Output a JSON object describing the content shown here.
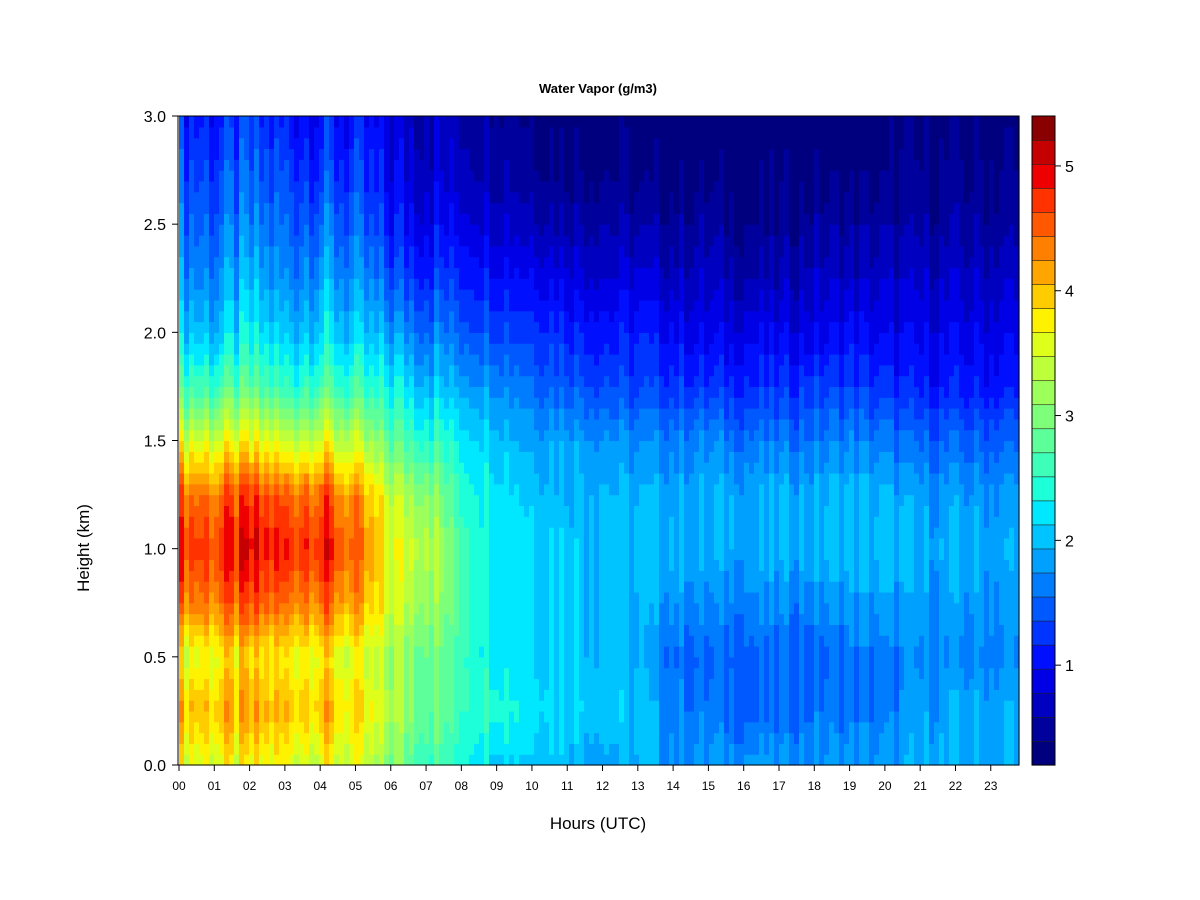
{
  "chart_data": {
    "type": "heatmap",
    "title": "Water Vapor (g/m3)",
    "xlabel": "Hours (UTC)",
    "ylabel": "Height (km)",
    "x_tick_labels": [
      "00",
      "01",
      "02",
      "03",
      "04",
      "05",
      "06",
      "07",
      "08",
      "09",
      "10",
      "11",
      "12",
      "13",
      "14",
      "15",
      "16",
      "17",
      "18",
      "19",
      "20",
      "21",
      "22",
      "23"
    ],
    "y_tick_labels": [
      "0.0",
      "0.5",
      "1.0",
      "1.5",
      "2.0",
      "2.5",
      "3.0"
    ],
    "xlim": [
      0,
      23.8
    ],
    "ylim": [
      0,
      3.0
    ],
    "colorbar": {
      "range": [
        0.2,
        5.4
      ],
      "tick_values": [
        1,
        2,
        3,
        4,
        5
      ],
      "tick_labels": [
        "1",
        "2",
        "3",
        "4",
        "5"
      ],
      "levels": 26,
      "colors": [
        "#00007f",
        "#00009c",
        "#0000c0",
        "#0000e6",
        "#0010ff",
        "#0034ff",
        "#0058ff",
        "#007cff",
        "#00a0ff",
        "#00c4ff",
        "#00e8ff",
        "#1dffd9",
        "#3dffba",
        "#5dff9a",
        "#7dff7a",
        "#9dff5a",
        "#bdff3a",
        "#ddff1a",
        "#fff200",
        "#ffcc00",
        "#ffa500",
        "#ff7f00",
        "#ff5800",
        "#ff3200",
        "#ee0000",
        "#c40000",
        "#8a0000"
      ]
    },
    "grid": false,
    "x_hours": [
      0,
      1,
      2,
      3,
      4,
      5,
      6,
      7,
      8,
      9,
      10,
      11,
      12,
      13,
      14,
      15,
      16,
      17,
      18,
      19,
      20,
      21,
      22,
      23
    ],
    "heights_km": [
      0.0,
      0.25,
      0.5,
      0.75,
      1.0,
      1.25,
      1.5,
      1.75,
      2.0,
      2.25,
      2.5,
      2.75,
      3.0
    ],
    "z_values": [
      [
        3.6,
        4.1,
        3.6,
        4.4,
        4.8,
        4.5,
        3.6,
        2.7,
        2.1,
        1.8,
        1.6,
        1.4,
        1.2
      ],
      [
        3.6,
        4.0,
        3.7,
        4.4,
        4.7,
        4.4,
        3.5,
        2.6,
        2.0,
        1.7,
        1.5,
        1.3,
        1.1
      ],
      [
        3.6,
        4.1,
        3.8,
        4.5,
        4.9,
        4.6,
        3.6,
        2.7,
        2.2,
        1.9,
        1.6,
        1.4,
        1.2
      ],
      [
        3.6,
        4.0,
        3.7,
        4.4,
        4.8,
        4.5,
        3.4,
        2.5,
        2.0,
        1.7,
        1.5,
        1.3,
        1.1
      ],
      [
        3.6,
        4.1,
        3.8,
        4.5,
        4.9,
        4.6,
        3.6,
        2.7,
        2.2,
        1.9,
        1.6,
        1.3,
        1.1
      ],
      [
        3.4,
        3.8,
        3.5,
        4.1,
        4.4,
        4.2,
        3.3,
        2.5,
        2.0,
        1.7,
        1.4,
        1.2,
        1.0
      ],
      [
        3.0,
        3.3,
        3.2,
        3.5,
        3.6,
        3.4,
        2.8,
        2.3,
        1.8,
        1.4,
        1.1,
        0.9,
        0.8
      ],
      [
        2.7,
        3.0,
        3.0,
        3.3,
        3.5,
        3.2,
        2.6,
        2.1,
        1.7,
        1.3,
        1.0,
        0.8,
        0.7
      ],
      [
        2.4,
        2.6,
        2.6,
        2.7,
        2.7,
        2.5,
        2.3,
        1.9,
        1.5,
        1.2,
        0.9,
        0.7,
        0.6
      ],
      [
        2.2,
        2.5,
        2.3,
        2.3,
        2.3,
        2.3,
        2.1,
        1.8,
        1.4,
        1.1,
        0.8,
        0.6,
        0.5
      ],
      [
        2.1,
        2.3,
        2.2,
        2.2,
        2.2,
        2.1,
        1.9,
        1.6,
        1.3,
        1.0,
        0.7,
        0.5,
        0.4
      ],
      [
        2.0,
        2.2,
        2.1,
        2.1,
        2.1,
        2.0,
        1.9,
        1.5,
        1.2,
        0.9,
        0.6,
        0.4,
        0.3
      ],
      [
        1.9,
        2.1,
        2.0,
        2.0,
        2.0,
        2.0,
        1.8,
        1.4,
        1.1,
        0.8,
        0.6,
        0.4,
        0.3
      ],
      [
        1.9,
        2.0,
        1.9,
        1.9,
        2.0,
        1.9,
        1.7,
        1.3,
        1.1,
        0.8,
        0.5,
        0.3,
        0.3
      ],
      [
        1.8,
        1.7,
        1.6,
        1.8,
        2.0,
        1.9,
        1.7,
        1.3,
        1.0,
        0.7,
        0.5,
        0.3,
        0.2
      ],
      [
        1.8,
        1.6,
        1.5,
        1.7,
        1.9,
        1.9,
        1.7,
        1.2,
        0.9,
        0.7,
        0.5,
        0.3,
        0.2
      ],
      [
        1.8,
        1.5,
        1.5,
        1.7,
        1.9,
        1.9,
        1.6,
        1.2,
        0.9,
        0.6,
        0.4,
        0.3,
        0.2
      ],
      [
        1.8,
        1.5,
        1.5,
        1.7,
        1.9,
        1.9,
        1.6,
        1.2,
        0.9,
        0.6,
        0.4,
        0.3,
        0.2
      ],
      [
        1.8,
        1.6,
        1.5,
        1.7,
        2.0,
        1.9,
        1.6,
        1.3,
        0.9,
        0.7,
        0.5,
        0.3,
        0.2
      ],
      [
        1.8,
        1.6,
        1.6,
        1.8,
        2.0,
        2.0,
        1.7,
        1.3,
        1.0,
        0.7,
        0.5,
        0.3,
        0.3
      ],
      [
        1.8,
        1.6,
        1.6,
        1.8,
        2.0,
        1.9,
        1.6,
        1.2,
        0.9,
        0.7,
        0.5,
        0.3,
        0.3
      ],
      [
        1.9,
        1.8,
        1.7,
        1.8,
        1.9,
        1.8,
        1.5,
        1.1,
        0.9,
        0.7,
        0.5,
        0.4,
        0.3
      ],
      [
        1.9,
        1.9,
        1.7,
        1.8,
        1.9,
        1.8,
        1.5,
        1.1,
        0.9,
        0.7,
        0.5,
        0.4,
        0.3
      ],
      [
        1.9,
        1.9,
        1.7,
        1.8,
        1.9,
        1.8,
        1.5,
        1.1,
        0.9,
        0.7,
        0.5,
        0.4,
        0.3
      ]
    ]
  }
}
